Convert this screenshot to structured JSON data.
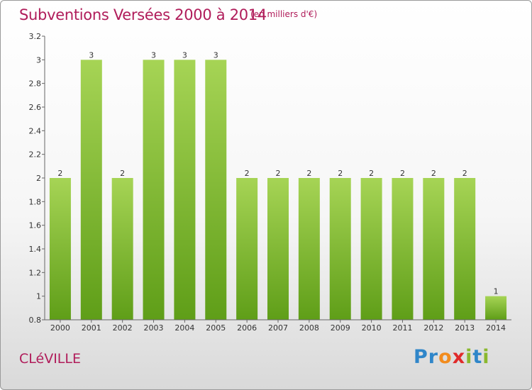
{
  "header": {
    "title": "Subventions Versées 2000 à 2014",
    "subtitle": "(en milliers d'€)"
  },
  "footer": {
    "town": "CLéVILLE",
    "brand_letters": [
      {
        "ch": "P",
        "color": "#2f86c9"
      },
      {
        "ch": "r",
        "color": "#2f86c9"
      },
      {
        "ch": "o",
        "color": "#f28c1e"
      },
      {
        "ch": "x",
        "color": "#e02a2a"
      },
      {
        "ch": "i",
        "color": "#8ab82e"
      },
      {
        "ch": "t",
        "color": "#2f86c9"
      },
      {
        "ch": "i",
        "color": "#8ab82e"
      }
    ]
  },
  "colors": {
    "bar_light": "#a6d455",
    "bar_dark": "#5f9e18",
    "title": "#b01c5a"
  },
  "chart_data": {
    "type": "bar",
    "categories": [
      "2000",
      "2001",
      "2002",
      "2003",
      "2004",
      "2005",
      "2006",
      "2007",
      "2008",
      "2009",
      "2010",
      "2011",
      "2012",
      "2013",
      "2014"
    ],
    "values": [
      2,
      3,
      2,
      3,
      3,
      3,
      2,
      2,
      2,
      2,
      2,
      2,
      2,
      2,
      1
    ],
    "data_labels": [
      "2",
      "3",
      "2",
      "3",
      "3",
      "3",
      "2",
      "2",
      "2",
      "2",
      "2",
      "2",
      "2",
      "2",
      "1"
    ],
    "ylim": [
      0.8,
      3.2
    ],
    "yticks": [
      0.8,
      1,
      1.2,
      1.4,
      1.6,
      1.8,
      2,
      2.2,
      2.4,
      2.6,
      2.8,
      3,
      3.2
    ],
    "ytick_labels": [
      "0.8",
      "1",
      "1.2",
      "1.4",
      "1.6",
      "1.8",
      "2",
      "2.2",
      "2.4",
      "2.6",
      "2.8",
      "3",
      "3.2"
    ],
    "grid": false,
    "title": "Subventions Versées 2000 à 2014",
    "xlabel": "",
    "ylabel": ""
  }
}
